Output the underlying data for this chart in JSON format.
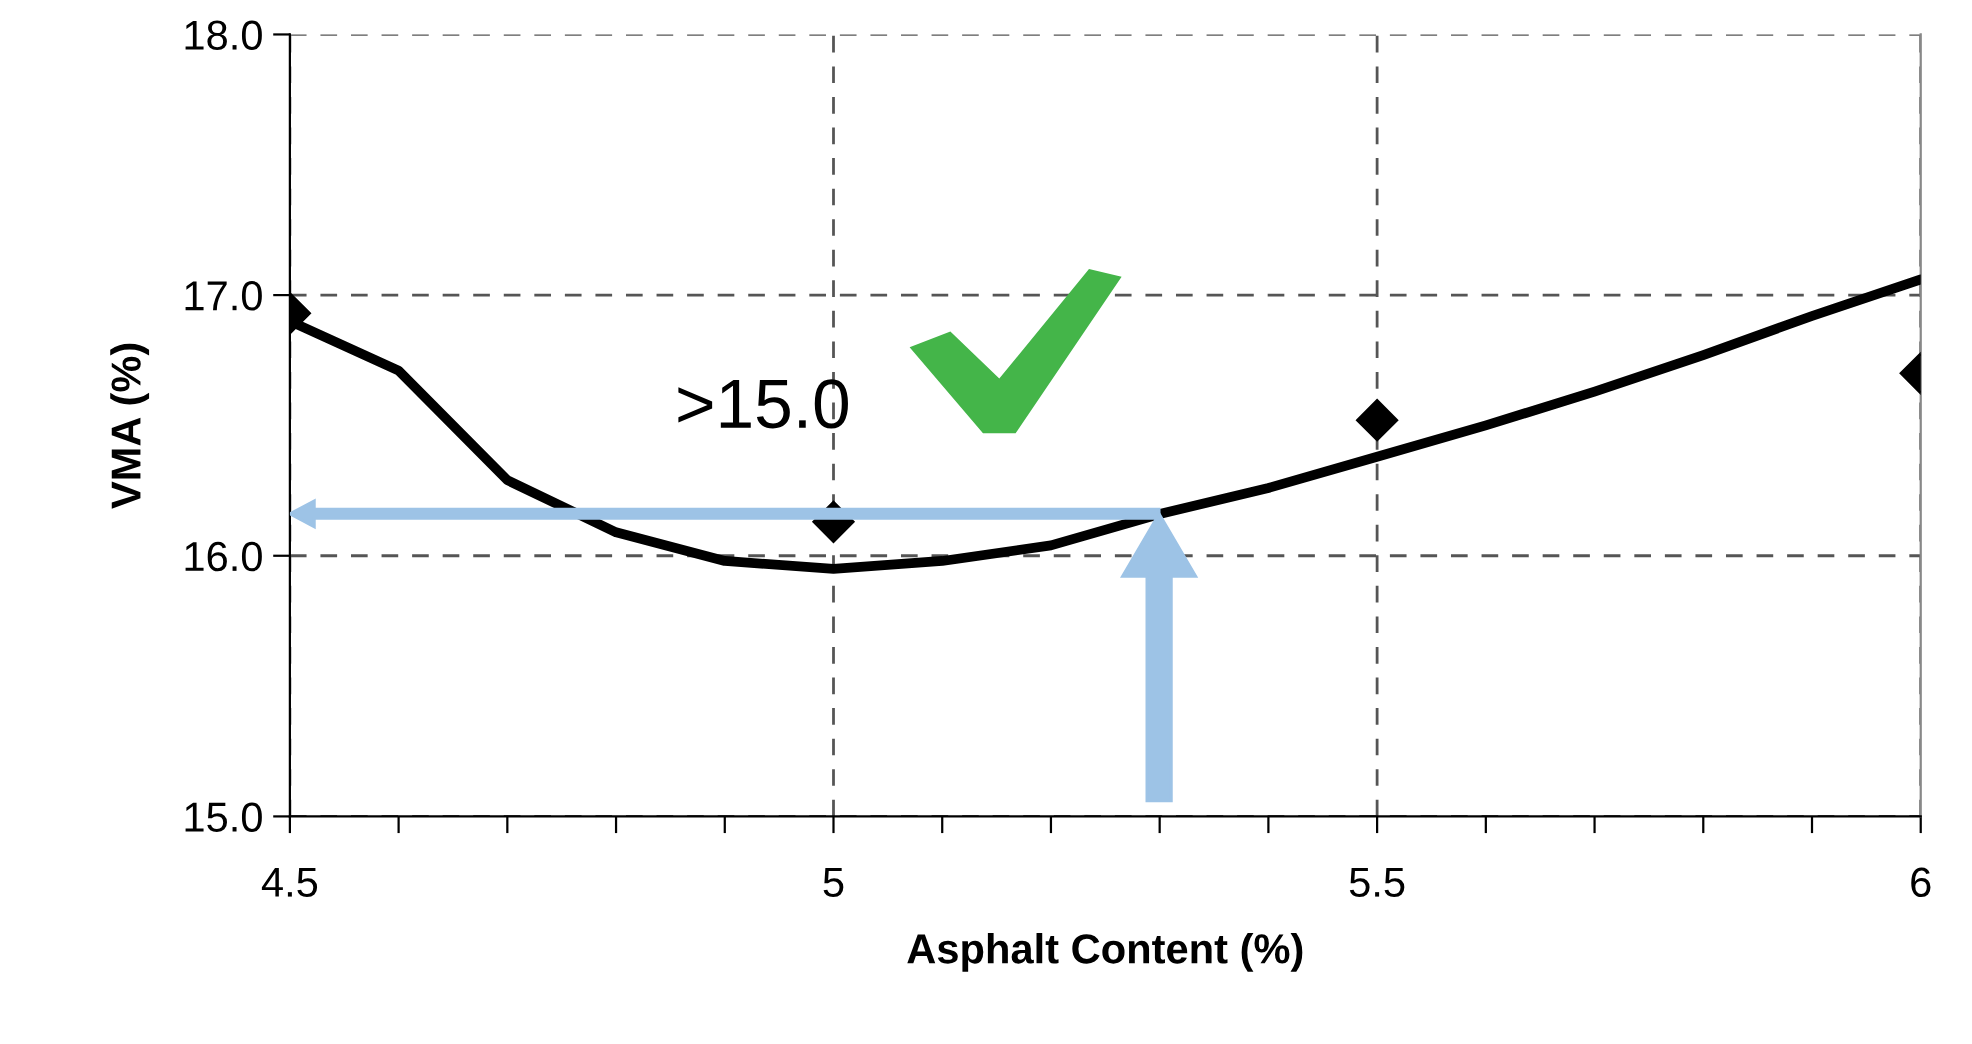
{
  "chart_data": {
    "type": "scatter",
    "xlabel": "Asphalt Content (%)",
    "ylabel": "VMA (%)",
    "x": [
      4.5,
      5.0,
      5.5,
      6.0
    ],
    "series": [
      {
        "color": "#000000",
        "marker": "diamond",
        "values": [
          16.93,
          16.13,
          16.52,
          16.7
        ]
      },
      {
        "type": "line",
        "color": "#000000",
        "marker": "none",
        "line_style": "solid",
        "x": [
          4.5,
          4.6,
          4.7,
          4.8,
          4.9,
          5.0,
          5.1,
          5.2,
          5.3,
          5.4,
          5.5,
          5.6,
          5.7,
          5.8,
          5.9,
          6.0
        ],
        "values": [
          16.9,
          16.71,
          16.29,
          16.09,
          15.98,
          15.95,
          15.98,
          16.04,
          16.16,
          16.26,
          16.38,
          16.5,
          16.63,
          16.77,
          16.92,
          17.06
        ]
      }
    ],
    "annotations": [
      ">15.0"
    ],
    "xlim": [
      4.5,
      6.0
    ],
    "xticks": [
      4.5,
      {
        "value": 4.6,
        "label": null
      },
      {
        "value": 4.7,
        "label": null
      },
      {
        "value": 4.8,
        "label": null
      },
      {
        "value": 4.9,
        "label": null
      },
      5,
      {
        "value": 5.1,
        "label": null
      },
      {
        "value": 5.2,
        "label": null
      },
      {
        "value": 5.3,
        "label": null
      },
      {
        "value": 5.4,
        "label": null
      },
      5.5,
      {
        "value": 5.6,
        "label": null
      },
      {
        "value": 5.7,
        "label": null
      },
      {
        "value": 5.8,
        "label": null
      },
      {
        "value": 5.9,
        "label": null
      },
      6
    ],
    "ylim": [
      15.0,
      18.0
    ],
    "yticks": [
      {
        "value": 15,
        "label": "15.0"
      },
      {
        "value": 16,
        "label": "16.0"
      },
      {
        "value": 17,
        "label": "17.0"
      },
      {
        "value": 18,
        "label": "18.0"
      }
    ],
    "grid": true,
    "legend": false
  }
}
